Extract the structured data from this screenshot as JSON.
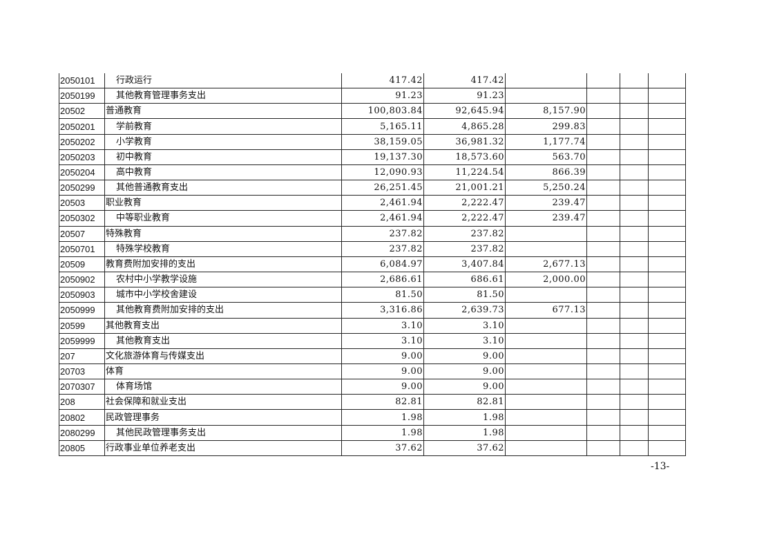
{
  "rows": [
    {
      "code": "2050101",
      "name": "行政运行",
      "level": "sub",
      "c1": "417.42",
      "c2": "417.42",
      "c3": ""
    },
    {
      "code": "2050199",
      "name": "其他教育管理事务支出",
      "level": "sub",
      "c1": "91.23",
      "c2": "91.23",
      "c3": ""
    },
    {
      "code": "20502",
      "name": "普通教育",
      "level": "top",
      "c1": "100,803.84",
      "c2": "92,645.94",
      "c3": "8,157.90"
    },
    {
      "code": "2050201",
      "name": "学前教育",
      "level": "sub",
      "c1": "5,165.11",
      "c2": "4,865.28",
      "c3": "299.83"
    },
    {
      "code": "2050202",
      "name": "小学教育",
      "level": "sub",
      "c1": "38,159.05",
      "c2": "36,981.32",
      "c3": "1,177.74"
    },
    {
      "code": "2050203",
      "name": "初中教育",
      "level": "sub",
      "c1": "19,137.30",
      "c2": "18,573.60",
      "c3": "563.70"
    },
    {
      "code": "2050204",
      "name": "高中教育",
      "level": "sub",
      "c1": "12,090.93",
      "c2": "11,224.54",
      "c3": "866.39"
    },
    {
      "code": "2050299",
      "name": "其他普通教育支出",
      "level": "sub",
      "c1": "26,251.45",
      "c2": "21,001.21",
      "c3": "5,250.24"
    },
    {
      "code": "20503",
      "name": "职业教育",
      "level": "top",
      "c1": "2,461.94",
      "c2": "2,222.47",
      "c3": "239.47"
    },
    {
      "code": "2050302",
      "name": "中等职业教育",
      "level": "sub",
      "c1": "2,461.94",
      "c2": "2,222.47",
      "c3": "239.47"
    },
    {
      "code": "20507",
      "name": "特殊教育",
      "level": "top",
      "c1": "237.82",
      "c2": "237.82",
      "c3": ""
    },
    {
      "code": "2050701",
      "name": "特殊学校教育",
      "level": "sub",
      "c1": "237.82",
      "c2": "237.82",
      "c3": ""
    },
    {
      "code": "20509",
      "name": "教育费附加安排的支出",
      "level": "top",
      "c1": "6,084.97",
      "c2": "3,407.84",
      "c3": "2,677.13"
    },
    {
      "code": "2050902",
      "name": "农村中小学教学设施",
      "level": "sub",
      "c1": "2,686.61",
      "c2": "686.61",
      "c3": "2,000.00"
    },
    {
      "code": "2050903",
      "name": "城市中小学校舍建设",
      "level": "sub",
      "c1": "81.50",
      "c2": "81.50",
      "c3": ""
    },
    {
      "code": "2050999",
      "name": "其他教育费附加安排的支出",
      "level": "sub",
      "c1": "3,316.86",
      "c2": "2,639.73",
      "c3": "677.13"
    },
    {
      "code": "20599",
      "name": "其他教育支出",
      "level": "top",
      "c1": "3.10",
      "c2": "3.10",
      "c3": ""
    },
    {
      "code": "2059999",
      "name": "其他教育支出",
      "level": "sub",
      "c1": "3.10",
      "c2": "3.10",
      "c3": ""
    },
    {
      "code": "207",
      "name": "文化旅游体育与传媒支出",
      "level": "top",
      "c1": "9.00",
      "c2": "9.00",
      "c3": ""
    },
    {
      "code": "20703",
      "name": "体育",
      "level": "top",
      "c1": "9.00",
      "c2": "9.00",
      "c3": ""
    },
    {
      "code": "2070307",
      "name": "体育场馆",
      "level": "sub",
      "c1": "9.00",
      "c2": "9.00",
      "c3": ""
    },
    {
      "code": "208",
      "name": "社会保障和就业支出",
      "level": "top",
      "c1": "82.81",
      "c2": "82.81",
      "c3": ""
    },
    {
      "code": "20802",
      "name": "民政管理事务",
      "level": "top",
      "c1": "1.98",
      "c2": "1.98",
      "c3": ""
    },
    {
      "code": "2080299",
      "name": "其他民政管理事务支出",
      "level": "sub",
      "c1": "1.98",
      "c2": "1.98",
      "c3": ""
    },
    {
      "code": "20805",
      "name": "行政事业单位养老支出",
      "level": "top",
      "c1": "37.62",
      "c2": "37.62",
      "c3": ""
    }
  ],
  "page_number": "-13-"
}
